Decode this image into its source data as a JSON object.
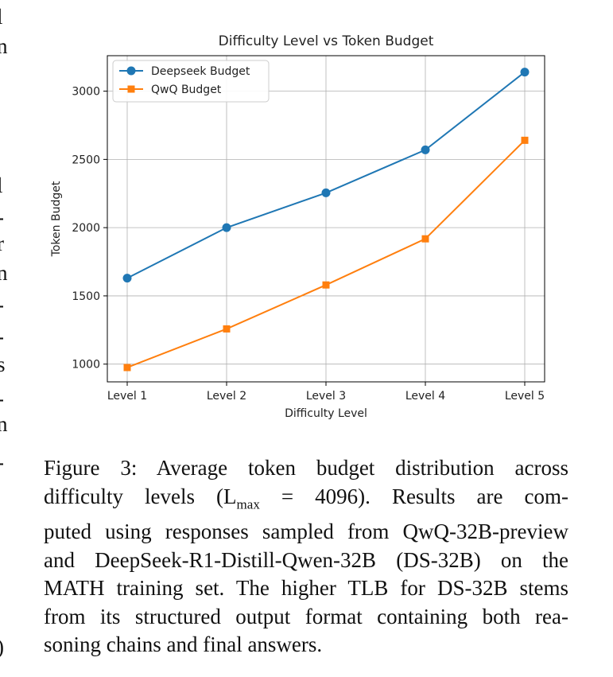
{
  "chart_data": {
    "type": "line",
    "title": "Difficulty Level vs Token Budget",
    "xlabel": "Difficulty Level",
    "ylabel": "Token Budget",
    "categories": [
      "Level 1",
      "Level 2",
      "Level 3",
      "Level 4",
      "Level 5"
    ],
    "ylim": [
      870,
      3260
    ],
    "yticks": [
      1000,
      1500,
      2000,
      2500,
      3000
    ],
    "grid": true,
    "legend_position": "top-left",
    "series": [
      {
        "name": "Deepseek Budget",
        "color": "#1f77b4",
        "marker": "circle",
        "values": [
          1630,
          2000,
          2255,
          2570,
          3140
        ]
      },
      {
        "name": "QwQ Budget",
        "color": "#ff7f0e",
        "marker": "square",
        "values": [
          975,
          1258,
          1580,
          1918,
          2640
        ]
      }
    ]
  },
  "caption": {
    "lines": [
      "Figure 3: Average token budget distribution across",
      "difficulty levels (L",
      "max",
      " = 4096). Results are com-",
      "puted using responses sampled from QwQ-32B-preview",
      "and DeepSeek-R1-Distill-Qwen-32B (DS-32B) on the",
      "MATH training set. The higher TLB for DS-32B stems",
      "from its structured output format containing both rea-",
      "soning chains and final answers."
    ]
  },
  "edge_glyphs": [
    "l",
    "n",
    "l",
    "-",
    "r",
    "n",
    "-",
    "-",
    "s",
    "-",
    "n",
    "-",
    ")"
  ]
}
